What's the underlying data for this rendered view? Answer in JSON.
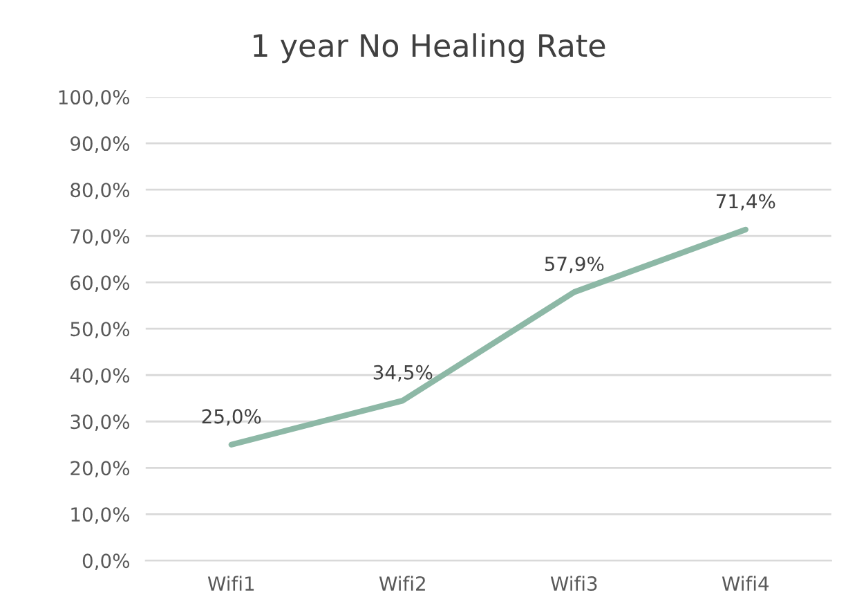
{
  "chart_data": {
    "type": "line",
    "title": "1 year No Healing Rate",
    "categories": [
      "Wifi1",
      "Wifi2",
      "Wifi3",
      "Wifi4"
    ],
    "values": [
      25.0,
      34.5,
      57.9,
      71.4
    ],
    "value_labels": [
      "25,0%",
      "34,5%",
      "57,9%",
      "71,4%"
    ],
    "color": "#8db8a6",
    "ylim": [
      0,
      100
    ],
    "yticks": [
      {
        "value": 0,
        "label": "0,0%"
      },
      {
        "value": 10,
        "label": "10,0%"
      },
      {
        "value": 20,
        "label": "20,0%"
      },
      {
        "value": 30,
        "label": "30,0%"
      },
      {
        "value": 40,
        "label": "40,0%"
      },
      {
        "value": 50,
        "label": "50,0%"
      },
      {
        "value": 60,
        "label": "60,0%"
      },
      {
        "value": 70,
        "label": "70,0%"
      },
      {
        "value": 80,
        "label": "80,0%"
      },
      {
        "value": 90,
        "label": "90,0%"
      },
      {
        "value": 100,
        "label": "100,0%"
      }
    ],
    "grid": "y",
    "marker": "none",
    "line_style": "solid",
    "legend": false
  }
}
